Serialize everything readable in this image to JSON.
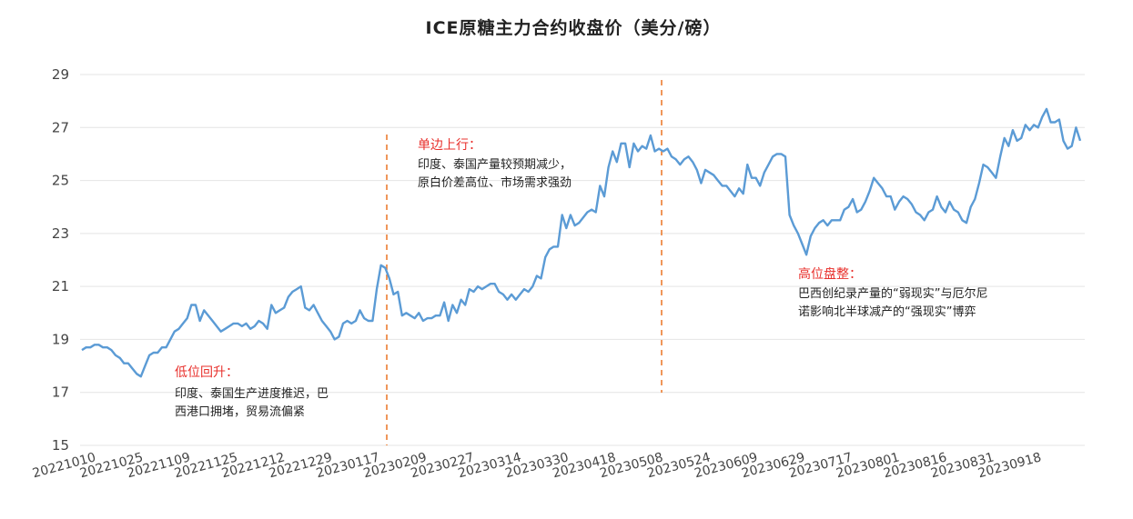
{
  "chart_data": {
    "type": "line",
    "title": "ICE原糖主力合约收盘价（美分/磅）",
    "xlabel": "",
    "ylabel": "",
    "ylim": [
      15,
      29
    ],
    "yticks": [
      15,
      17,
      19,
      21,
      23,
      25,
      27,
      29
    ],
    "grid": true,
    "legend": "none",
    "x_tick_labels": [
      "20221010",
      "20221025",
      "20221109",
      "20221125",
      "20221212",
      "20221229",
      "20230117",
      "20230209",
      "20230227",
      "20230314",
      "20230330",
      "20230418",
      "20230508",
      "20230524",
      "20230609",
      "20230629",
      "20230717",
      "20230801",
      "20230816",
      "20230831",
      "20230918"
    ],
    "series": [
      {
        "color": "#5b9bd5",
        "values": [
          18.6,
          18.7,
          18.7,
          18.8,
          18.8,
          18.7,
          18.7,
          18.6,
          18.4,
          18.3,
          18.1,
          18.1,
          17.9,
          17.7,
          17.6,
          18.0,
          18.4,
          18.5,
          18.5,
          18.7,
          18.7,
          19.0,
          19.3,
          19.4,
          19.6,
          19.8,
          20.3,
          20.3,
          19.7,
          20.1,
          19.9,
          19.7,
          19.5,
          19.3,
          19.4,
          19.5,
          19.6,
          19.6,
          19.5,
          19.6,
          19.4,
          19.5,
          19.7,
          19.6,
          19.4,
          20.3,
          20.0,
          20.1,
          20.2,
          20.6,
          20.8,
          20.9,
          21.0,
          20.2,
          20.1,
          20.3,
          20.0,
          19.7,
          19.5,
          19.3,
          19.0,
          19.1,
          19.6,
          19.7,
          19.6,
          19.7,
          20.1,
          19.8,
          19.7,
          19.7,
          20.9,
          21.8,
          21.7,
          21.3,
          20.7,
          20.8,
          19.9,
          20.0,
          19.9,
          19.8,
          20.0,
          19.7,
          19.8,
          19.8,
          19.9,
          19.9,
          20.4,
          19.7,
          20.3,
          20.0,
          20.5,
          20.3,
          20.9,
          20.8,
          21.0,
          20.9,
          21.0,
          21.1,
          21.1,
          20.8,
          20.7,
          20.5,
          20.7,
          20.5,
          20.7,
          20.9,
          20.8,
          21.0,
          21.4,
          21.3,
          22.1,
          22.4,
          22.5,
          22.5,
          23.7,
          23.2,
          23.7,
          23.3,
          23.4,
          23.6,
          23.8,
          23.9,
          23.8,
          24.8,
          24.4,
          25.5,
          26.1,
          25.7,
          26.4,
          26.4,
          25.5,
          26.4,
          26.1,
          26.3,
          26.2,
          26.7,
          26.1,
          26.2,
          26.1,
          26.2,
          25.9,
          25.8,
          25.6,
          25.8,
          25.9,
          25.7,
          25.4,
          24.9,
          25.4,
          25.3,
          25.2,
          25.0,
          24.8,
          24.8,
          24.6,
          24.4,
          24.7,
          24.5,
          25.6,
          25.1,
          25.1,
          24.8,
          25.3,
          25.6,
          25.9,
          26.0,
          26.0,
          25.9,
          23.7,
          23.3,
          23.0,
          22.6,
          22.2,
          22.9,
          23.2,
          23.4,
          23.5,
          23.3,
          23.5,
          23.5,
          23.5,
          23.9,
          24.0,
          24.3,
          23.8,
          23.9,
          24.2,
          24.6,
          25.1,
          24.9,
          24.7,
          24.4,
          24.4,
          23.9,
          24.2,
          24.4,
          24.3,
          24.1,
          23.8,
          23.7,
          23.5,
          23.8,
          23.9,
          24.4,
          24.0,
          23.8,
          24.2,
          23.9,
          23.8,
          23.5,
          23.4,
          24.0,
          24.3,
          24.9,
          25.6,
          25.5,
          25.3,
          25.1,
          25.9,
          26.6,
          26.3,
          26.9,
          26.5,
          26.6,
          27.1,
          26.9,
          27.1,
          27.0,
          27.4,
          27.7,
          27.2,
          27.2,
          27.3,
          26.5,
          26.2,
          26.3,
          27.0,
          26.5
        ]
      }
    ],
    "annotations": [
      {
        "heading": "低位回升：",
        "lines": [
          "印度、泰国生产进度推迟，巴",
          "西港口拥堵，贸易流偏紧"
        ]
      },
      {
        "heading": "单边上行：",
        "lines": [
          "印度、泰国产量较预期减少，",
          "原白价差高位、市场需求强劲"
        ]
      },
      {
        "heading": "高位盘整：",
        "lines": [
          "巴西创纪录产量的“弱现实”与厄尔尼",
          "诺影响北半球减产的“强现实”博弈"
        ]
      }
    ],
    "divider_color": "#ed7d31"
  }
}
